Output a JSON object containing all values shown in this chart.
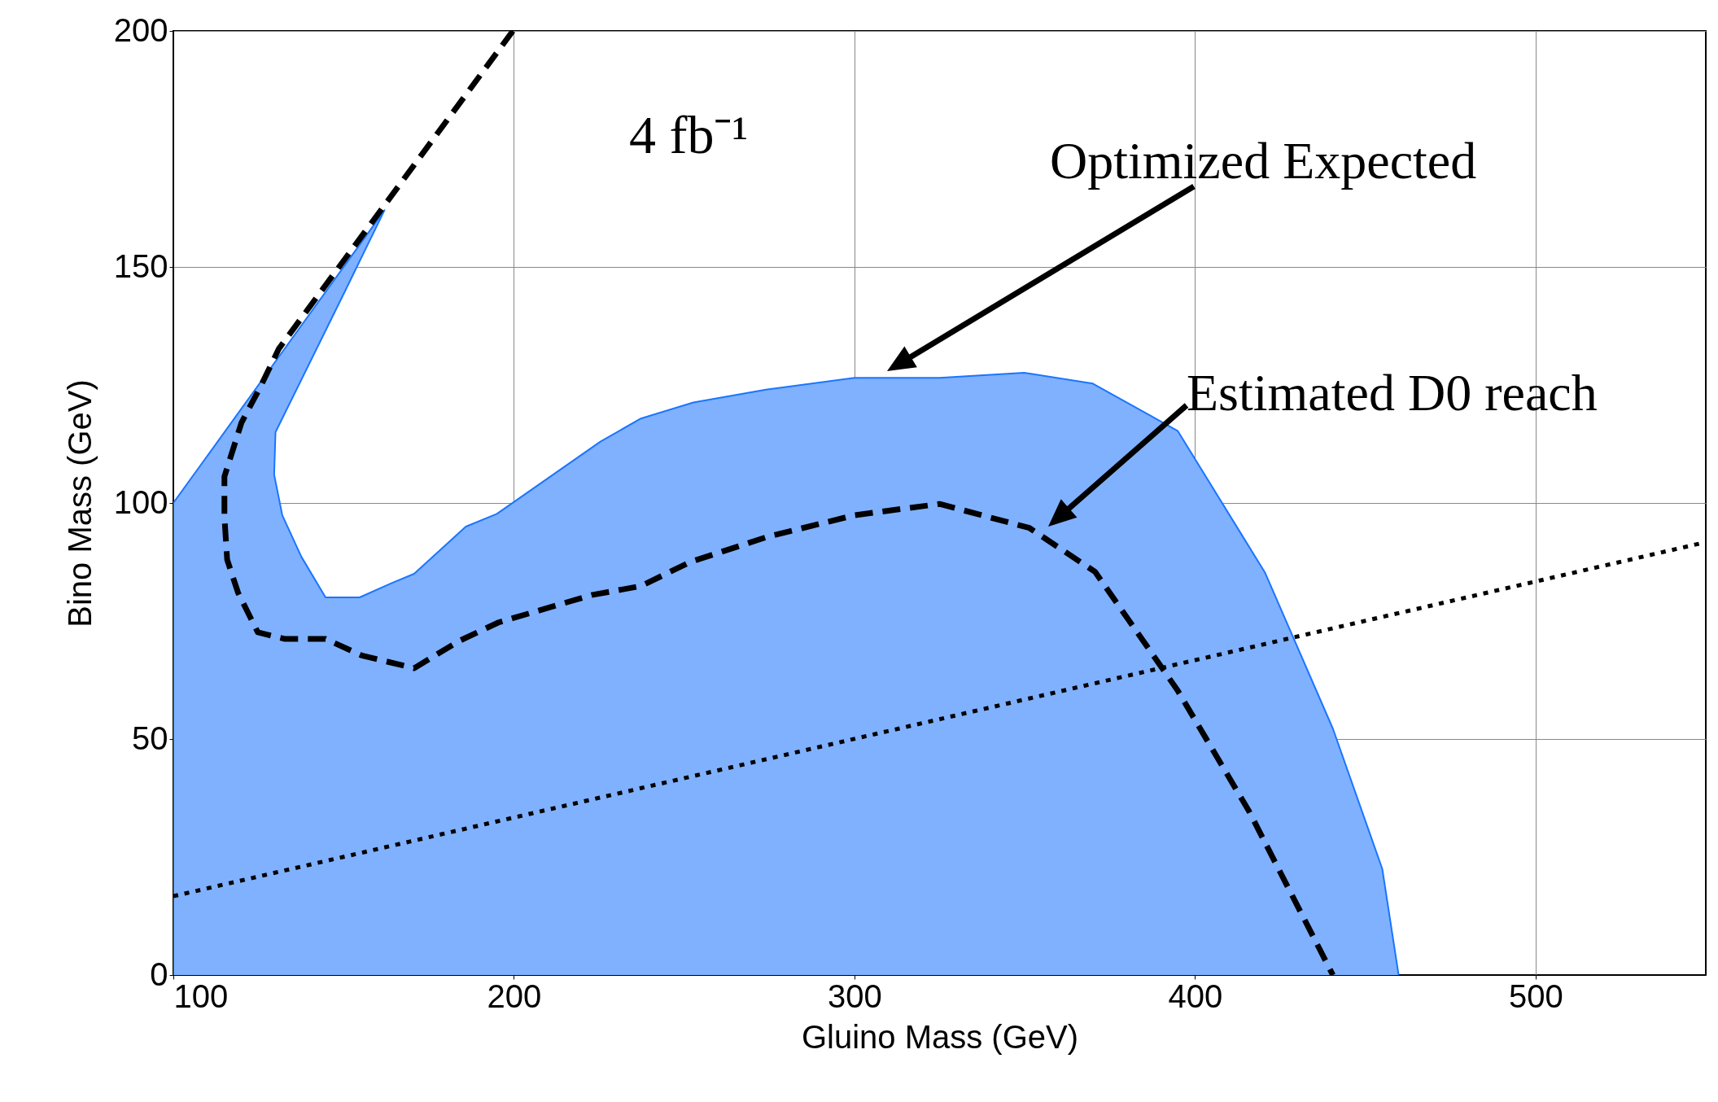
{
  "chart_data": {
    "type": "line",
    "xlabel": "Gluino Mass (GeV)",
    "ylabel": "Bino Mass (GeV)",
    "xlim": [
      100,
      550
    ],
    "xticks": [
      100,
      200,
      300,
      400,
      500
    ],
    "ylim": [
      0,
      200
    ],
    "yticks": [
      0,
      50,
      100,
      150,
      200
    ],
    "grid": true,
    "series": [
      {
        "type": "area",
        "color": "#80b1ff",
        "x": [
          100,
          100,
          130,
          162,
          150.5,
          130,
          129.6,
          132,
          137.6,
          144.7,
          154.7,
          164,
          170.7,
          185.9,
          195,
          225.4,
          237.3,
          252.7,
          274,
          300,
          325,
          349.8,
          370,
          394.9,
          420.6,
          440.5,
          455,
          459.8
        ],
        "values": [
          0,
          100,
          130,
          162,
          145,
          115,
          106,
          97.4,
          88.6,
          80,
          80,
          83,
          85,
          95,
          97.7,
          113,
          117.9,
          121.3,
          124,
          126.5,
          126.5,
          127.6,
          125.3,
          115.3,
          85.2,
          52.2,
          22.5,
          0
        ]
      },
      {
        "type": "line",
        "color": "#000000",
        "line_style": "dashed",
        "x": [
          199.7,
          131,
          125.7,
          120,
          115,
          115,
          115.8,
          119,
          124.8,
          132.8,
          144.7,
          155.3,
          170.7,
          184,
          195.5,
          222.8,
          237.3,
          251.8,
          274.3,
          300,
          325,
          351.4,
          370.7,
          394.9,
          415.8,
          440.5
        ],
        "values": [
          200,
          132.7,
          124.8,
          117,
          105.6,
          97,
          88,
          81,
          72.6,
          71.2,
          71.2,
          67.7,
          65,
          70.8,
          74.7,
          80.5,
          82.4,
          87.5,
          92.8,
          97.4,
          99.8,
          94.7,
          85.4,
          60.3,
          34.8,
          0
        ]
      },
      {
        "color": "#000000",
        "line_style": "dotted",
        "x": [
          100,
          550
        ],
        "values": [
          16.7,
          91.7
        ]
      }
    ],
    "annotations": [
      "4 fb⁻¹",
      "Optimized Expected",
      "Estimated D0 reach"
    ]
  }
}
